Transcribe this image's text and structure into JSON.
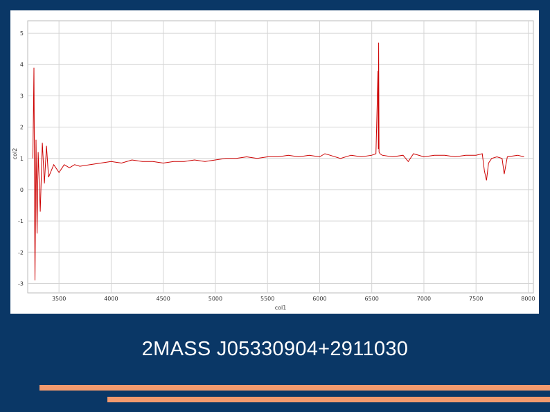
{
  "caption": "2MASS J05330904+2911030",
  "colors": {
    "background": "#0a3766",
    "stripe": "#f39a6e",
    "series": "#cc0000",
    "grid": "#d4d4d4"
  },
  "chart_data": {
    "type": "line",
    "title": "",
    "xlabel": "col1",
    "ylabel": "col2",
    "xlim": [
      3200,
      8050
    ],
    "ylim": [
      -3.3,
      5.4
    ],
    "xticks": [
      3500,
      4000,
      4500,
      5000,
      5500,
      6000,
      6500,
      7000,
      7500,
      8000
    ],
    "yticks": [
      5,
      4,
      3,
      2,
      1,
      0,
      -1,
      -2,
      -3
    ],
    "xtick_labels": [
      "3500",
      "4000",
      "4500",
      "5000",
      "5500",
      "6000",
      "6500",
      "7000",
      "7500",
      "8000"
    ],
    "ytick_labels": [
      "5",
      "4",
      "3",
      "2",
      "1",
      "0",
      "-1",
      "-2",
      "-3"
    ],
    "grid": true,
    "legend": "none",
    "series": [
      {
        "name": "",
        "x": [
          3250,
          3260,
          3270,
          3280,
          3290,
          3300,
          3320,
          3340,
          3360,
          3380,
          3400,
          3450,
          3500,
          3550,
          3600,
          3650,
          3700,
          3800,
          3900,
          4000,
          4100,
          4200,
          4300,
          4400,
          4500,
          4600,
          4700,
          4800,
          4900,
          5000,
          5100,
          5200,
          5300,
          5400,
          5500,
          5600,
          5700,
          5800,
          5900,
          6000,
          6050,
          6100,
          6200,
          6300,
          6400,
          6500,
          6540,
          6560,
          6563,
          6566,
          6570,
          6580,
          6600,
          6700,
          6800,
          6850,
          6900,
          7000,
          7100,
          7200,
          7300,
          7400,
          7500,
          7560,
          7580,
          7600,
          7620,
          7650,
          7700,
          7750,
          7770,
          7800,
          7900,
          7960
        ],
        "y": [
          1.0,
          3.9,
          -2.9,
          1.6,
          -1.4,
          1.2,
          -0.7,
          1.5,
          0.2,
          1.4,
          0.4,
          0.8,
          0.55,
          0.8,
          0.7,
          0.8,
          0.75,
          0.8,
          0.85,
          0.9,
          0.85,
          0.95,
          0.9,
          0.9,
          0.85,
          0.9,
          0.9,
          0.95,
          0.9,
          0.95,
          1.0,
          1.0,
          1.05,
          1.0,
          1.05,
          1.05,
          1.1,
          1.05,
          1.1,
          1.05,
          1.15,
          1.1,
          1.0,
          1.1,
          1.05,
          1.1,
          1.15,
          3.8,
          1.3,
          4.7,
          1.2,
          1.15,
          1.1,
          1.05,
          1.1,
          0.9,
          1.15,
          1.05,
          1.1,
          1.1,
          1.05,
          1.1,
          1.1,
          1.15,
          0.6,
          0.3,
          0.85,
          1.0,
          1.05,
          1.0,
          0.5,
          1.05,
          1.1,
          1.05
        ]
      }
    ]
  }
}
